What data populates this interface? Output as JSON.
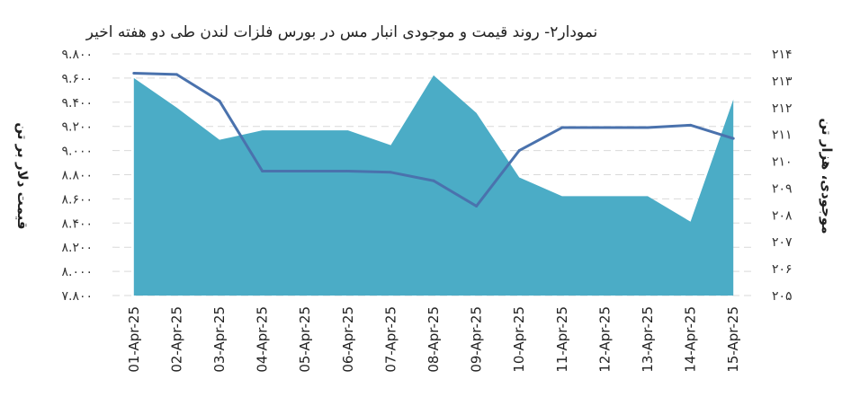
{
  "chart_data": {
    "type": "area+line",
    "title": "نمودار۲- روند قیمت و موجودی انبار مس در بورس فلزات لندن طی دو هفته اخیر",
    "categories": [
      "01-Apr-25",
      "02-Apr-25",
      "03-Apr-25",
      "04-Apr-25",
      "05-Apr-25",
      "06-Apr-25",
      "07-Apr-25",
      "08-Apr-25",
      "09-Apr-25",
      "10-Apr-25",
      "11-Apr-25",
      "12-Apr-25",
      "13-Apr-25",
      "14-Apr-25",
      "15-Apr-25"
    ],
    "y_left": {
      "label": "قیمت دلار بر تن",
      "ylim": [
        7800,
        9800
      ],
      "ticks": [
        7800,
        8000,
        8200,
        8400,
        8600,
        8800,
        9000,
        9200,
        9400,
        9600,
        9800
      ],
      "tick_labels": [
        "۷.۸۰۰",
        "۸.۰۰۰",
        "۸.۲۰۰",
        "۸.۴۰۰",
        "۸.۶۰۰",
        "۸.۸۰۰",
        "۹.۰۰۰",
        "۹.۲۰۰",
        "۹.۴۰۰",
        "۹.۶۰۰",
        "۹.۸۰۰"
      ]
    },
    "y_right": {
      "label": "موجودی، هزار تن",
      "ylim": [
        205,
        214
      ],
      "ticks": [
        205,
        206,
        207,
        208,
        209,
        210,
        211,
        212,
        213,
        214
      ],
      "tick_labels": [
        "۲۰۵",
        "۲۰۶",
        "۲۰۷",
        "۲۰۸",
        "۲۰۹",
        "۲۱۰",
        "۲۱۱",
        "۲۱۲",
        "۲۱۳",
        "۲۱۴"
      ]
    },
    "series": [
      {
        "type": "area",
        "axis": "right",
        "color": "#4bacc6",
        "values": [
          213.1,
          212.0,
          210.8,
          211.15,
          211.15,
          211.15,
          210.6,
          213.2,
          211.8,
          209.4,
          208.7,
          208.7,
          208.7,
          207.75,
          212.3
        ]
      },
      {
        "type": "line",
        "axis": "left",
        "color": "#4a72ad",
        "values": [
          9640,
          9630,
          9410,
          8830,
          8830,
          8830,
          8820,
          8750,
          8540,
          9000,
          9190,
          9190,
          9190,
          9210,
          9100
        ]
      }
    ]
  }
}
